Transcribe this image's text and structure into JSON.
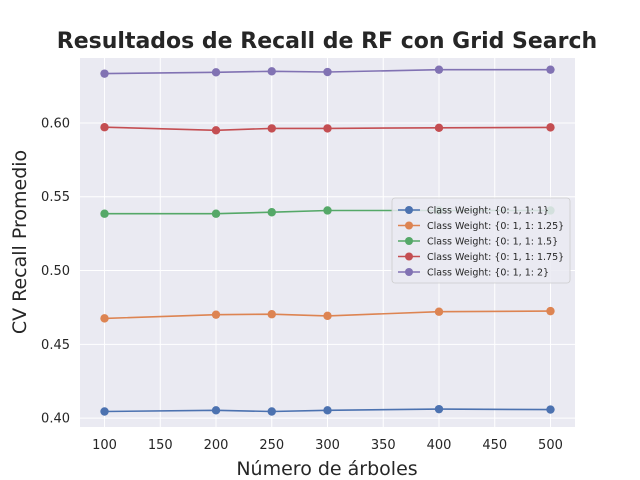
{
  "chart_data": {
    "type": "line",
    "title": "Resultados de Recall de RF con Grid Search",
    "xlabel": "Número de árboles",
    "ylabel": "CV Recall Promedio",
    "x": [
      100,
      200,
      250,
      300,
      400,
      500
    ],
    "xlim": [
      78,
      522
    ],
    "ylim": [
      0.394,
      0.644
    ],
    "xticks": [
      100,
      150,
      200,
      250,
      300,
      350,
      400,
      450,
      500
    ],
    "yticks": [
      0.4,
      0.45,
      0.5,
      0.55,
      0.6
    ],
    "xtick_labels": [
      "100",
      "150",
      "200",
      "250",
      "300",
      "350",
      "400",
      "450",
      "500"
    ],
    "ytick_labels": [
      "0.40",
      "0.45",
      "0.50",
      "0.55",
      "0.60"
    ],
    "grid": true,
    "legend_position": "center-right",
    "series": [
      {
        "name": "Class Weight: {0: 1, 1: 1}",
        "color": "#4c72b0",
        "values": [
          0.4045,
          0.4053,
          0.4045,
          0.4053,
          0.4061,
          0.4058
        ]
      },
      {
        "name": "Class Weight: {0: 1, 1: 1.25}",
        "color": "#dd8452",
        "values": [
          0.4676,
          0.4701,
          0.4704,
          0.4693,
          0.4721,
          0.4725
        ]
      },
      {
        "name": "Class Weight: {0: 1, 1: 1.5}",
        "color": "#55a868",
        "values": [
          0.5385,
          0.5385,
          0.5395,
          0.5407,
          0.5407,
          0.5407
        ]
      },
      {
        "name": "Class Weight: {0: 1, 1: 1.75}",
        "color": "#c44e52",
        "values": [
          0.5971,
          0.595,
          0.5963,
          0.5963,
          0.5967,
          0.597
        ]
      },
      {
        "name": "Class Weight: {0: 1, 1: 2}",
        "color": "#8172b3",
        "values": [
          0.6334,
          0.6343,
          0.635,
          0.6345,
          0.6361,
          0.6361
        ]
      }
    ]
  }
}
